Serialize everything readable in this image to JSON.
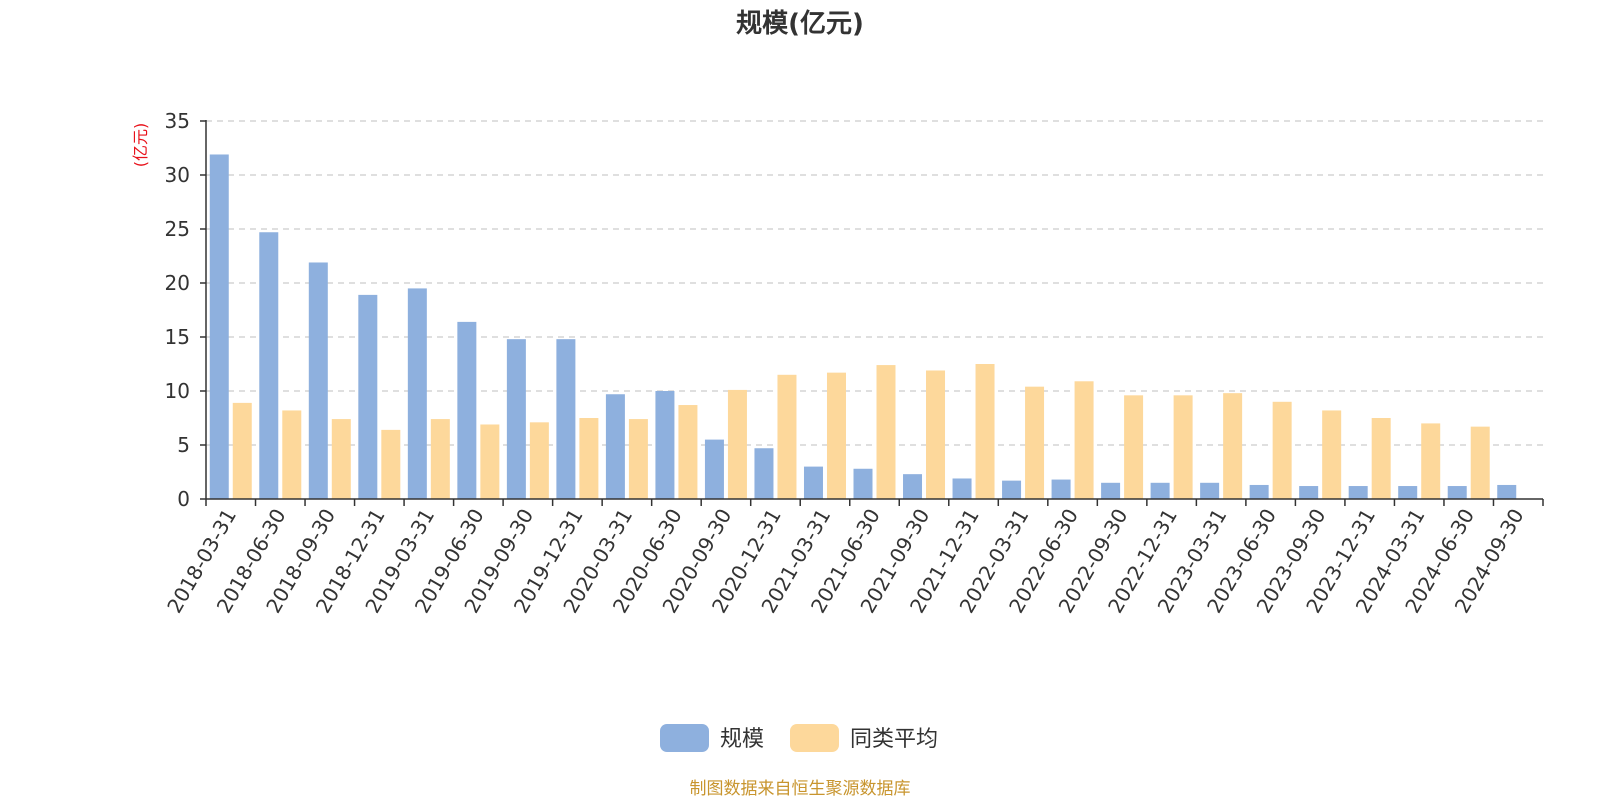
{
  "chart_data": {
    "type": "bar",
    "title": "规模(亿元)",
    "ylabel": "(亿元)",
    "ylim": [
      0,
      35
    ],
    "yticks": [
      "0",
      "5",
      "10",
      "15",
      "20",
      "25",
      "30",
      "35"
    ],
    "categories": [
      "2018-03-31",
      "2018-06-30",
      "2018-09-30",
      "2018-12-31",
      "2019-03-31",
      "2019-06-30",
      "2019-09-30",
      "2019-12-31",
      "2020-03-31",
      "2020-06-30",
      "2020-09-30",
      "2020-12-31",
      "2021-03-31",
      "2021-06-30",
      "2021-09-30",
      "2021-12-31",
      "2022-03-31",
      "2022-06-30",
      "2022-09-30",
      "2022-12-31",
      "2023-03-31",
      "2023-06-30",
      "2023-09-30",
      "2023-12-31",
      "2024-03-31",
      "2024-06-30",
      "2024-09-30"
    ],
    "series": [
      {
        "name": "规模",
        "color": "#8eb0de",
        "values": [
          31.9,
          24.7,
          21.9,
          18.9,
          19.5,
          16.4,
          14.8,
          14.8,
          9.7,
          10.0,
          5.5,
          4.7,
          3.0,
          2.8,
          2.3,
          1.9,
          1.7,
          1.8,
          1.5,
          1.5,
          1.5,
          1.3,
          1.2,
          1.2,
          1.2,
          1.2,
          1.3
        ]
      },
      {
        "name": "同类平均",
        "color": "#fdd89b",
        "values": [
          8.9,
          8.2,
          7.4,
          6.4,
          7.4,
          6.9,
          7.1,
          7.5,
          7.4,
          8.7,
          10.1,
          11.5,
          11.7,
          12.4,
          11.9,
          12.5,
          10.4,
          10.9,
          9.6,
          9.6,
          9.8,
          9.0,
          8.2,
          7.5,
          7.0,
          6.7,
          null
        ]
      }
    ],
    "grid": true,
    "legend_position": "bottom-center",
    "source_note": "制图数据来自恒生聚源数据库",
    "colors": {
      "title": "#333333",
      "ylabel": "#e8111a",
      "axis": "#333333",
      "grid": "#cccccc",
      "source": "#c8952e"
    }
  }
}
